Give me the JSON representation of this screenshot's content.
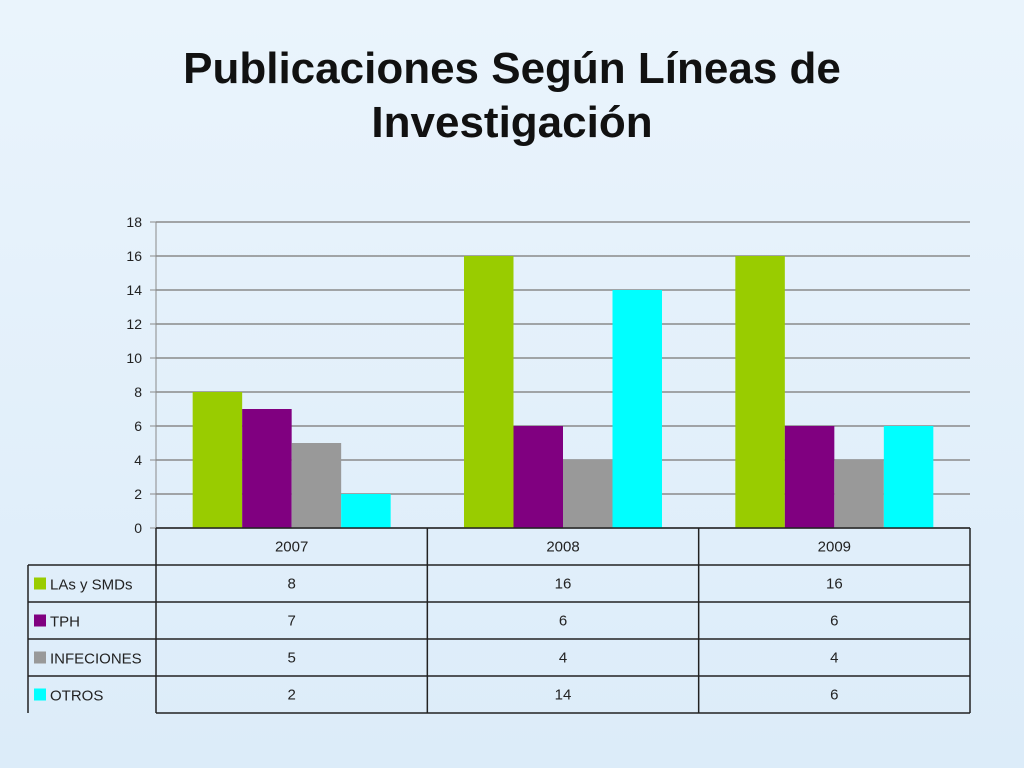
{
  "title_line1": "Publicaciones Según Líneas de",
  "title_line2": "Investigación",
  "chart_data": {
    "type": "bar",
    "title": "Publicaciones Según Líneas de Investigación",
    "categories": [
      "2007",
      "2008",
      "2009"
    ],
    "series": [
      {
        "name": "LAs y SMDs",
        "values": [
          8,
          16,
          16
        ],
        "color": "#99cc00"
      },
      {
        "name": "TPH",
        "values": [
          7,
          6,
          6
        ],
        "color": "#800080"
      },
      {
        "name": "INFECIONES",
        "values": [
          5,
          4,
          4
        ],
        "color": "#999999"
      },
      {
        "name": "OTROS",
        "values": [
          2,
          14,
          6
        ],
        "color": "#00ffff"
      }
    ],
    "ylim": [
      0,
      18
    ],
    "yticks": [
      "0",
      "2",
      "4",
      "6",
      "8",
      "10",
      "12",
      "14",
      "16",
      "18"
    ],
    "grid": true,
    "legend": "data-table-left",
    "data_table": [
      [
        "8",
        "16",
        "16"
      ],
      [
        "7",
        "6",
        "6"
      ],
      [
        "5",
        "4",
        "4"
      ],
      [
        "2",
        "14",
        "6"
      ]
    ]
  }
}
